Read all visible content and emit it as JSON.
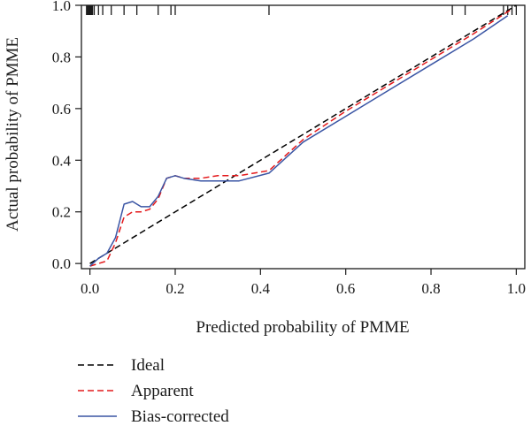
{
  "chart_data": {
    "type": "line",
    "title": "",
    "xlabel": "Predicted probability of PMME",
    "ylabel": "Actual probability of PMME",
    "xlim": [
      -0.02,
      1.02
    ],
    "ylim": [
      -0.02,
      1.0
    ],
    "x_ticks": [
      "0.0",
      "0.2",
      "0.4",
      "0.6",
      "0.8",
      "1.0"
    ],
    "y_ticks": [
      "0.0",
      "0.2",
      "0.4",
      "0.6",
      "0.8",
      "1.0"
    ],
    "grid": false,
    "legend_position": "bottom-left",
    "series": [
      {
        "name": "Ideal",
        "color": "#000000",
        "dash": "dashed",
        "x": [
          0.0,
          1.0
        ],
        "y": [
          0.0,
          1.0
        ]
      },
      {
        "name": "Apparent",
        "color": "#e41a1c",
        "dash": "dashed",
        "x": [
          0.0,
          0.02,
          0.04,
          0.06,
          0.08,
          0.1,
          0.12,
          0.14,
          0.16,
          0.18,
          0.2,
          0.22,
          0.26,
          0.3,
          0.35,
          0.42,
          0.5,
          0.6,
          0.7,
          0.8,
          0.9,
          0.985
        ],
        "y": [
          -0.01,
          0.0,
          0.01,
          0.08,
          0.18,
          0.2,
          0.2,
          0.21,
          0.25,
          0.33,
          0.34,
          0.33,
          0.33,
          0.34,
          0.34,
          0.36,
          0.48,
          0.59,
          0.69,
          0.79,
          0.89,
          0.98
        ]
      },
      {
        "name": "Bias-corrected",
        "color": "#3a55a4",
        "dash": "solid",
        "x": [
          0.0,
          0.02,
          0.04,
          0.06,
          0.08,
          0.1,
          0.12,
          0.14,
          0.16,
          0.18,
          0.2,
          0.22,
          0.26,
          0.3,
          0.35,
          0.42,
          0.5,
          0.6,
          0.7,
          0.8,
          0.9,
          0.98
        ],
        "y": [
          -0.01,
          0.02,
          0.04,
          0.1,
          0.23,
          0.24,
          0.22,
          0.22,
          0.26,
          0.33,
          0.34,
          0.33,
          0.32,
          0.32,
          0.32,
          0.35,
          0.47,
          0.57,
          0.67,
          0.77,
          0.87,
          0.96
        ]
      }
    ],
    "rug_ticks_x": [
      -0.008,
      -0.006,
      -0.004,
      -0.002,
      0.0,
      0.002,
      0.004,
      0.006,
      0.01,
      0.02,
      0.03,
      0.05,
      0.08,
      0.11,
      0.16,
      0.19,
      0.2,
      0.42,
      0.85,
      0.88,
      0.97,
      0.98,
      0.99,
      1.0
    ]
  }
}
